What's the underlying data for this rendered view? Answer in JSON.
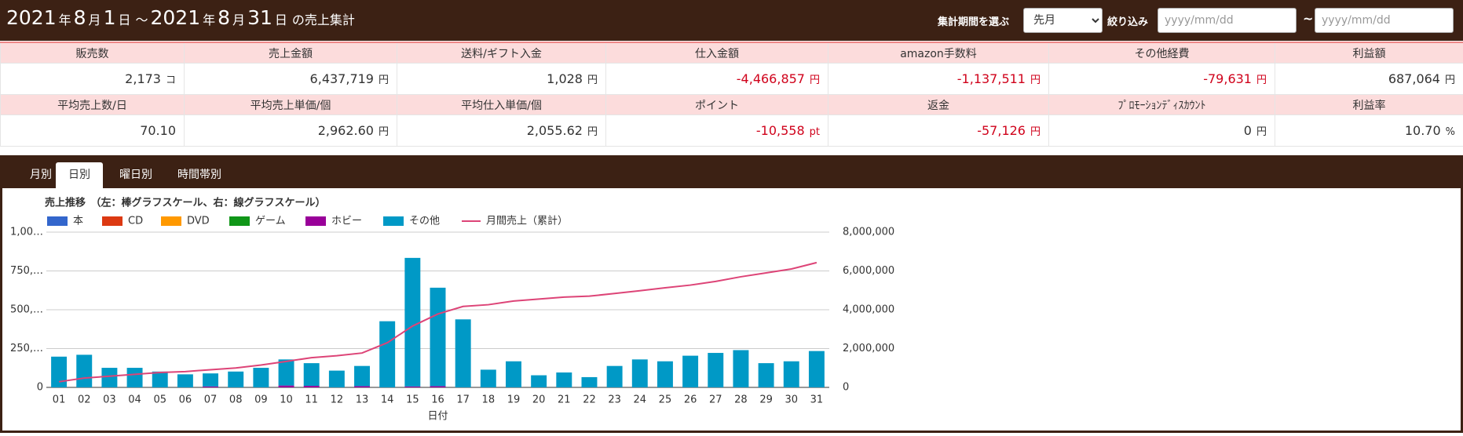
{
  "header": {
    "title_parts": [
      "2021",
      "年",
      "8",
      "月",
      "1",
      "日",
      "～",
      "2021",
      "年",
      "8",
      "月",
      "31",
      "日",
      "の売上集計"
    ],
    "period_label": "集計期間を選ぶ",
    "period_select": "先月",
    "filter_label": "絞り込み",
    "date_from_placeholder": "yyyy/mm/dd",
    "range_sep": "~",
    "date_to_placeholder": "yyyy/mm/dd"
  },
  "summary": {
    "rows": [
      {
        "headers": [
          "販売数",
          "売上金額",
          "送料/ギフト入金",
          "仕入金額",
          "amazon手数料",
          "その他経費",
          "利益額"
        ],
        "values": [
          "2,173",
          "6,437,719",
          "1,028",
          "-4,466,857",
          "-1,137,511",
          "-79,631",
          "687,064"
        ],
        "units": [
          "コ",
          "円",
          "円",
          "円",
          "円",
          "円",
          "円"
        ]
      },
      {
        "headers": [
          "平均売上数/日",
          "平均売上単価/個",
          "平均仕入単価/個",
          "ポイント",
          "返金",
          "ﾌﾟﾛﾓｰｼｮﾝﾃﾞｨｽｶｳﾝﾄ",
          "利益率"
        ],
        "values": [
          "70.10",
          "2,962.60",
          "2,055.62",
          "-10,558",
          "-57,126",
          "0",
          "10.70"
        ],
        "units": [
          null,
          "円",
          "円",
          "pt",
          "円",
          "円",
          "%"
        ]
      }
    ]
  },
  "tabs": {
    "items": [
      "月別",
      "日別",
      "曜日別",
      "時間帯別"
    ],
    "active": 1
  },
  "chart_data": {
    "type": "bar",
    "stacked": true,
    "title": "売上推移　（左：棒グラフスケール、右：線グラフスケール）",
    "x_label": "日付",
    "categories": [
      "01",
      "02",
      "03",
      "04",
      "05",
      "06",
      "07",
      "08",
      "09",
      "10",
      "11",
      "12",
      "13",
      "14",
      "15",
      "16",
      "17",
      "18",
      "19",
      "20",
      "21",
      "22",
      "23",
      "24",
      "25",
      "26",
      "27",
      "28",
      "29",
      "30",
      "31"
    ],
    "series": [
      {
        "name": "本",
        "color": "#3366cc",
        "values": [
          0,
          0,
          0,
          0,
          0,
          0,
          0,
          0,
          0,
          0,
          0,
          0,
          0,
          0,
          0,
          0,
          0,
          0,
          0,
          0,
          0,
          0,
          0,
          0,
          0,
          0,
          0,
          0,
          0,
          0,
          0
        ]
      },
      {
        "name": "CD",
        "color": "#dc3912",
        "values": [
          0,
          0,
          0,
          0,
          0,
          0,
          0,
          0,
          0,
          0,
          0,
          0,
          0,
          0,
          0,
          0,
          0,
          0,
          0,
          0,
          0,
          0,
          0,
          0,
          0,
          0,
          0,
          0,
          0,
          0,
          0
        ]
      },
      {
        "name": "DVD",
        "color": "#ff9900",
        "values": [
          0,
          0,
          0,
          0,
          0,
          0,
          0,
          0,
          0,
          0,
          0,
          0,
          0,
          0,
          0,
          0,
          0,
          0,
          0,
          0,
          0,
          0,
          0,
          0,
          0,
          0,
          0,
          0,
          0,
          0,
          0
        ]
      },
      {
        "name": "ゲーム",
        "color": "#109618",
        "values": [
          0,
          0,
          0,
          0,
          0,
          0,
          0,
          0,
          0,
          0,
          0,
          0,
          0,
          0,
          0,
          0,
          0,
          0,
          0,
          0,
          0,
          0,
          0,
          0,
          0,
          0,
          0,
          0,
          0,
          0,
          0
        ]
      },
      {
        "name": "ホビー",
        "color": "#990099",
        "values": [
          0,
          0,
          0,
          0,
          0,
          0,
          6,
          0,
          0,
          12,
          10,
          0,
          8,
          0,
          6,
          8,
          0,
          0,
          0,
          0,
          0,
          0,
          0,
          0,
          0,
          0,
          0,
          0,
          0,
          0,
          0
        ]
      },
      {
        "name": "その他",
        "color": "#0099c6",
        "values": [
          198,
          210,
          126,
          126,
          102,
          84,
          84,
          102,
          126,
          168,
          146,
          108,
          130,
          426,
          828,
          634,
          438,
          114,
          168,
          78,
          96,
          66,
          138,
          180,
          168,
          204,
          222,
          240,
          156,
          168,
          234
        ]
      },
      {
        "name": "月間売上（累計）",
        "color": "#dd4477",
        "axis": "y2",
        "line": true,
        "values": [
          290000,
          480000,
          575000,
          670000,
          770000,
          815000,
          910000,
          1000000,
          1150000,
          1340000,
          1530000,
          1630000,
          1770000,
          2300000,
          3160000,
          3780000,
          4170000,
          4260000,
          4450000,
          4550000,
          4650000,
          4700000,
          4840000,
          4980000,
          5130000,
          5270000,
          5460000,
          5700000,
          5900000,
          6100000,
          6430000
        ]
      }
    ],
    "ylim": [
      0,
      1000
    ],
    "yticks": [
      0,
      {
        "value": 250,
        "label": "250,…"
      },
      {
        "value": 500,
        "label": "500,…"
      },
      {
        "value": 750,
        "label": "750,…"
      },
      {
        "value": 1000,
        "label": "1,00…"
      }
    ],
    "y2lim": [
      0,
      8000000
    ],
    "y2ticks": [
      0,
      {
        "value": 2000000,
        "label": "2,000,000"
      },
      {
        "value": 4000000,
        "label": "4,000,000"
      },
      {
        "value": 6000000,
        "label": "6,000,000"
      },
      {
        "value": 8000000,
        "label": "8,000,000"
      }
    ],
    "grid": true,
    "legend": "top"
  }
}
